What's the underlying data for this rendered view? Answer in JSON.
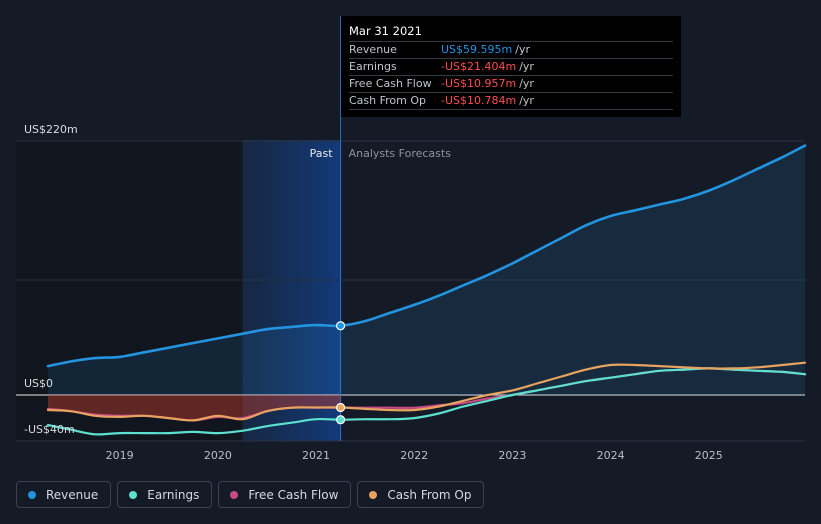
{
  "tooltip": {
    "date": "Mar 31 2021",
    "rows": [
      {
        "label": "Revenue",
        "value": "US$59.595m",
        "unit": "/yr",
        "color": "#2394df"
      },
      {
        "label": "Earnings",
        "value": "-US$21.404m",
        "unit": "/yr",
        "color": "#ff4d4d"
      },
      {
        "label": "Free Cash Flow",
        "value": "-US$10.957m",
        "unit": "/yr",
        "color": "#ff4d4d"
      },
      {
        "label": "Cash From Op",
        "value": "-US$10.784m",
        "unit": "/yr",
        "color": "#ff4d4d"
      }
    ]
  },
  "legend": [
    {
      "label": "Revenue",
      "color": "#2394df"
    },
    {
      "label": "Earnings",
      "color": "#5ce1cf"
    },
    {
      "label": "Free Cash Flow",
      "color": "#c84b87"
    },
    {
      "label": "Cash From Op",
      "color": "#e8a35f"
    }
  ],
  "chart_data": {
    "type": "line",
    "title": "",
    "xlabel": "",
    "ylabel": "",
    "ylim": [
      -40,
      220
    ],
    "y_ticks": [
      "US$220m",
      "US$0",
      "-US$40m"
    ],
    "x_ticks": [
      "2019",
      "2020",
      "2021",
      "2022",
      "2023",
      "2024",
      "2025"
    ],
    "x_tick_values": [
      2019,
      2020,
      2021,
      2022,
      2023,
      2024,
      2025
    ],
    "xlim": [
      2018.27,
      2025.98
    ],
    "past_label": "Past",
    "forecast_label": "Analysts Forecasts",
    "past_shade_start": 2020.25,
    "divider": 2021.25,
    "series": [
      {
        "name": "Revenue",
        "color": "#2394df",
        "x": [
          2018.27,
          2018.5,
          2018.75,
          2019.0,
          2019.25,
          2019.5,
          2019.75,
          2020.0,
          2020.25,
          2020.5,
          2020.75,
          2021.0,
          2021.25,
          2021.5,
          2021.75,
          2022.0,
          2022.25,
          2022.5,
          2022.75,
          2023.0,
          2023.25,
          2023.5,
          2023.75,
          2024.0,
          2024.25,
          2024.5,
          2024.75,
          2025.0,
          2025.25,
          2025.5,
          2025.75,
          2025.98
        ],
        "values": [
          25,
          29,
          32,
          33,
          37,
          41,
          45,
          49,
          53,
          57,
          59,
          60.5,
          60,
          64,
          71,
          78,
          86,
          95,
          104,
          114,
          125,
          136,
          147,
          155,
          160,
          165,
          170,
          177,
          186,
          196,
          206,
          216
        ]
      },
      {
        "name": "Earnings",
        "color": "#5ce1cf",
        "x": [
          2018.27,
          2018.5,
          2018.75,
          2019.0,
          2019.25,
          2019.5,
          2019.75,
          2020.0,
          2020.25,
          2020.5,
          2020.75,
          2021.0,
          2021.25,
          2021.5,
          2021.75,
          2022.0,
          2022.25,
          2022.5,
          2022.75,
          2023.0,
          2023.25,
          2023.5,
          2023.75,
          2024.0,
          2024.25,
          2024.5,
          2024.75,
          2025.0,
          2025.25,
          2025.5,
          2025.75,
          2025.98
        ],
        "values": [
          -26,
          -30,
          -34,
          -33,
          -33,
          -33,
          -32,
          -33,
          -31,
          -27,
          -24,
          -21,
          -21.4,
          -21,
          -21,
          -20,
          -16,
          -10,
          -5,
          0,
          4,
          8,
          12,
          15,
          18,
          21,
          22,
          23,
          22,
          21,
          20,
          18
        ]
      },
      {
        "name": "Free Cash Flow",
        "color": "#c84b87",
        "x": [
          2018.27,
          2018.5,
          2018.75,
          2019.0,
          2019.25,
          2019.5,
          2019.75,
          2020.0,
          2020.25,
          2020.5,
          2020.75,
          2021.0,
          2021.25,
          2021.5,
          2021.75,
          2022.0,
          2022.25,
          2022.5,
          2022.75,
          2023.0,
          2023.25,
          2023.5,
          2023.75,
          2024.0,
          2024.25,
          2024.5,
          2024.75,
          2025.0,
          2025.25,
          2025.5,
          2025.75,
          2025.98
        ],
        "values": [
          -12,
          -14,
          -17,
          -18,
          -18,
          -20,
          -22,
          -19,
          -20,
          -14,
          -11,
          -11,
          -11,
          -11,
          -11,
          -11,
          -9,
          -7,
          -3,
          0,
          4,
          8,
          12,
          15,
          18,
          21,
          22,
          23,
          22,
          21,
          20,
          18
        ]
      },
      {
        "name": "Cash From Op",
        "color": "#e8a35f",
        "x": [
          2018.27,
          2018.5,
          2018.75,
          2019.0,
          2019.25,
          2019.5,
          2019.75,
          2020.0,
          2020.25,
          2020.5,
          2020.75,
          2021.0,
          2021.25,
          2021.5,
          2021.75,
          2022.0,
          2022.25,
          2022.5,
          2022.75,
          2023.0,
          2023.25,
          2023.5,
          2023.75,
          2024.0,
          2024.25,
          2024.5,
          2024.75,
          2025.0,
          2025.25,
          2025.5,
          2025.75,
          2025.98
        ],
        "values": [
          -13,
          -14,
          -18,
          -19,
          -18,
          -20,
          -22,
          -18,
          -21,
          -14,
          -11,
          -10.8,
          -10.8,
          -12,
          -13,
          -13,
          -10,
          -5,
          0,
          4,
          10,
          16,
          22,
          26,
          26,
          25,
          24,
          23,
          23,
          24,
          26,
          28
        ]
      }
    ]
  }
}
